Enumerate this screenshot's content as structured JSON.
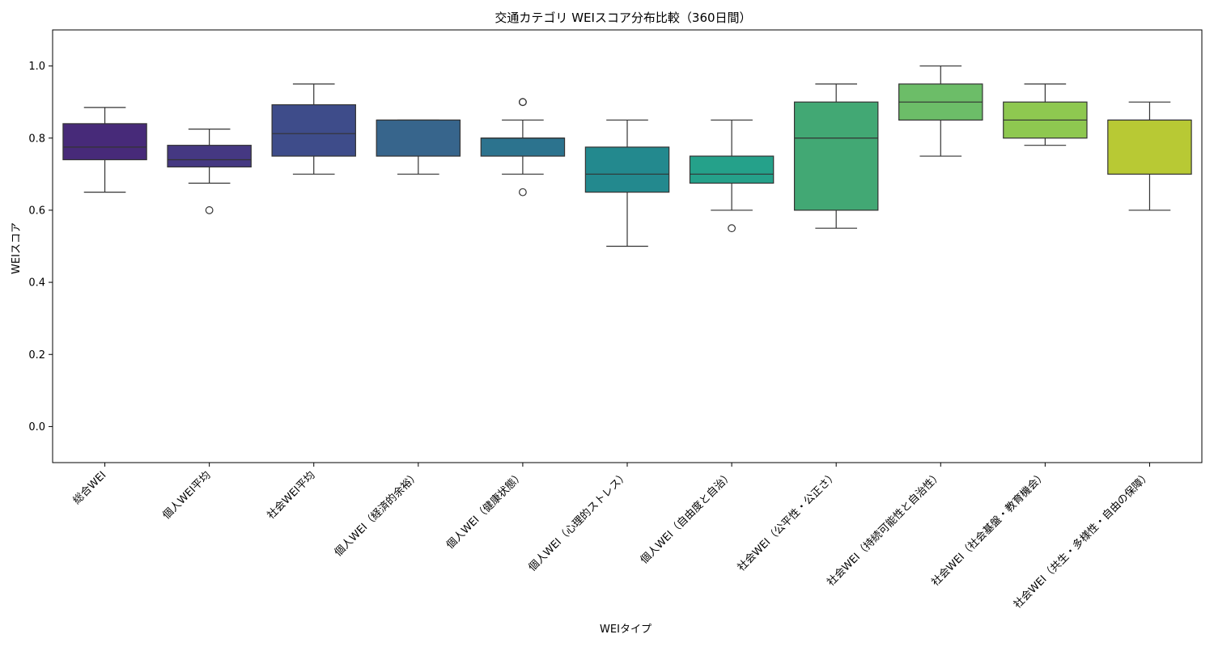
{
  "chart_data": {
    "type": "box",
    "title": "交通カテゴリ WEIスコア分布比較（360日間）",
    "xlabel": "WEIタイプ",
    "ylabel": "WEIスコア",
    "ylim": [
      -0.1,
      1.1
    ],
    "yticks": [
      0.0,
      0.2,
      0.4,
      0.6,
      0.8,
      1.0
    ],
    "ytick_labels": [
      "0.0",
      "0.2",
      "0.4",
      "0.6",
      "0.8",
      "1.0"
    ],
    "grid": false,
    "legend": "none",
    "categories": [
      "総合WEI",
      "個人WEI平均",
      "社会WEI平均",
      "個人WEI（経済的余裕）",
      "個人WEI（健康状態）",
      "個人WEI（心理的ストレス）",
      "個人WEI（自由度と自治）",
      "社会WEI（公平性・公正さ）",
      "社会WEI（持続可能性と自治性）",
      "社会WEI（社会基盤・教育機会）",
      "社会WEI（共生・多様性・自由の保障）"
    ],
    "boxes": [
      {
        "whisker_low": 0.65,
        "q1": 0.74,
        "median": 0.775,
        "q3": 0.84,
        "whisker_high": 0.885,
        "outliers": [],
        "color": "#472a79"
      },
      {
        "whisker_low": 0.675,
        "q1": 0.72,
        "median": 0.74,
        "q3": 0.78,
        "whisker_high": 0.825,
        "outliers": [
          0.6
        ],
        "color": "#453882"
      },
      {
        "whisker_low": 0.7,
        "q1": 0.75,
        "median": 0.8125,
        "q3": 0.8925,
        "whisker_high": 0.95,
        "outliers": [],
        "color": "#3e4c8a"
      },
      {
        "whisker_low": 0.7,
        "q1": 0.75,
        "median": 0.85,
        "q3": 0.85,
        "whisker_high": 0.85,
        "outliers": [],
        "color": "#37658c"
      },
      {
        "whisker_low": 0.7,
        "q1": 0.75,
        "median": 0.8,
        "q3": 0.8,
        "whisker_high": 0.85,
        "outliers": [
          0.65,
          0.9,
          0.9
        ],
        "color": "#2c738e"
      },
      {
        "whisker_low": 0.5,
        "q1": 0.65,
        "median": 0.7,
        "q3": 0.775,
        "whisker_high": 0.85,
        "outliers": [],
        "color": "#23898e"
      },
      {
        "whisker_low": 0.6,
        "q1": 0.675,
        "median": 0.7,
        "q3": 0.75,
        "whisker_high": 0.85,
        "outliers": [
          0.55
        ],
        "color": "#25a18a"
      },
      {
        "whisker_low": 0.55,
        "q1": 0.6,
        "median": 0.8,
        "q3": 0.9,
        "whisker_high": 0.95,
        "outliers": [],
        "color": "#42a874"
      },
      {
        "whisker_low": 0.75,
        "q1": 0.85,
        "median": 0.9,
        "q3": 0.95,
        "whisker_high": 1.0,
        "outliers": [],
        "color": "#6cbd68"
      },
      {
        "whisker_low": 0.78,
        "q1": 0.8,
        "median": 0.85,
        "q3": 0.9,
        "whisker_high": 0.95,
        "outliers": [],
        "color": "#8ec850"
      },
      {
        "whisker_low": 0.6,
        "q1": 0.7,
        "median": 0.85,
        "q3": 0.85,
        "whisker_high": 0.9,
        "outliers": [],
        "color": "#b8c934"
      }
    ]
  }
}
